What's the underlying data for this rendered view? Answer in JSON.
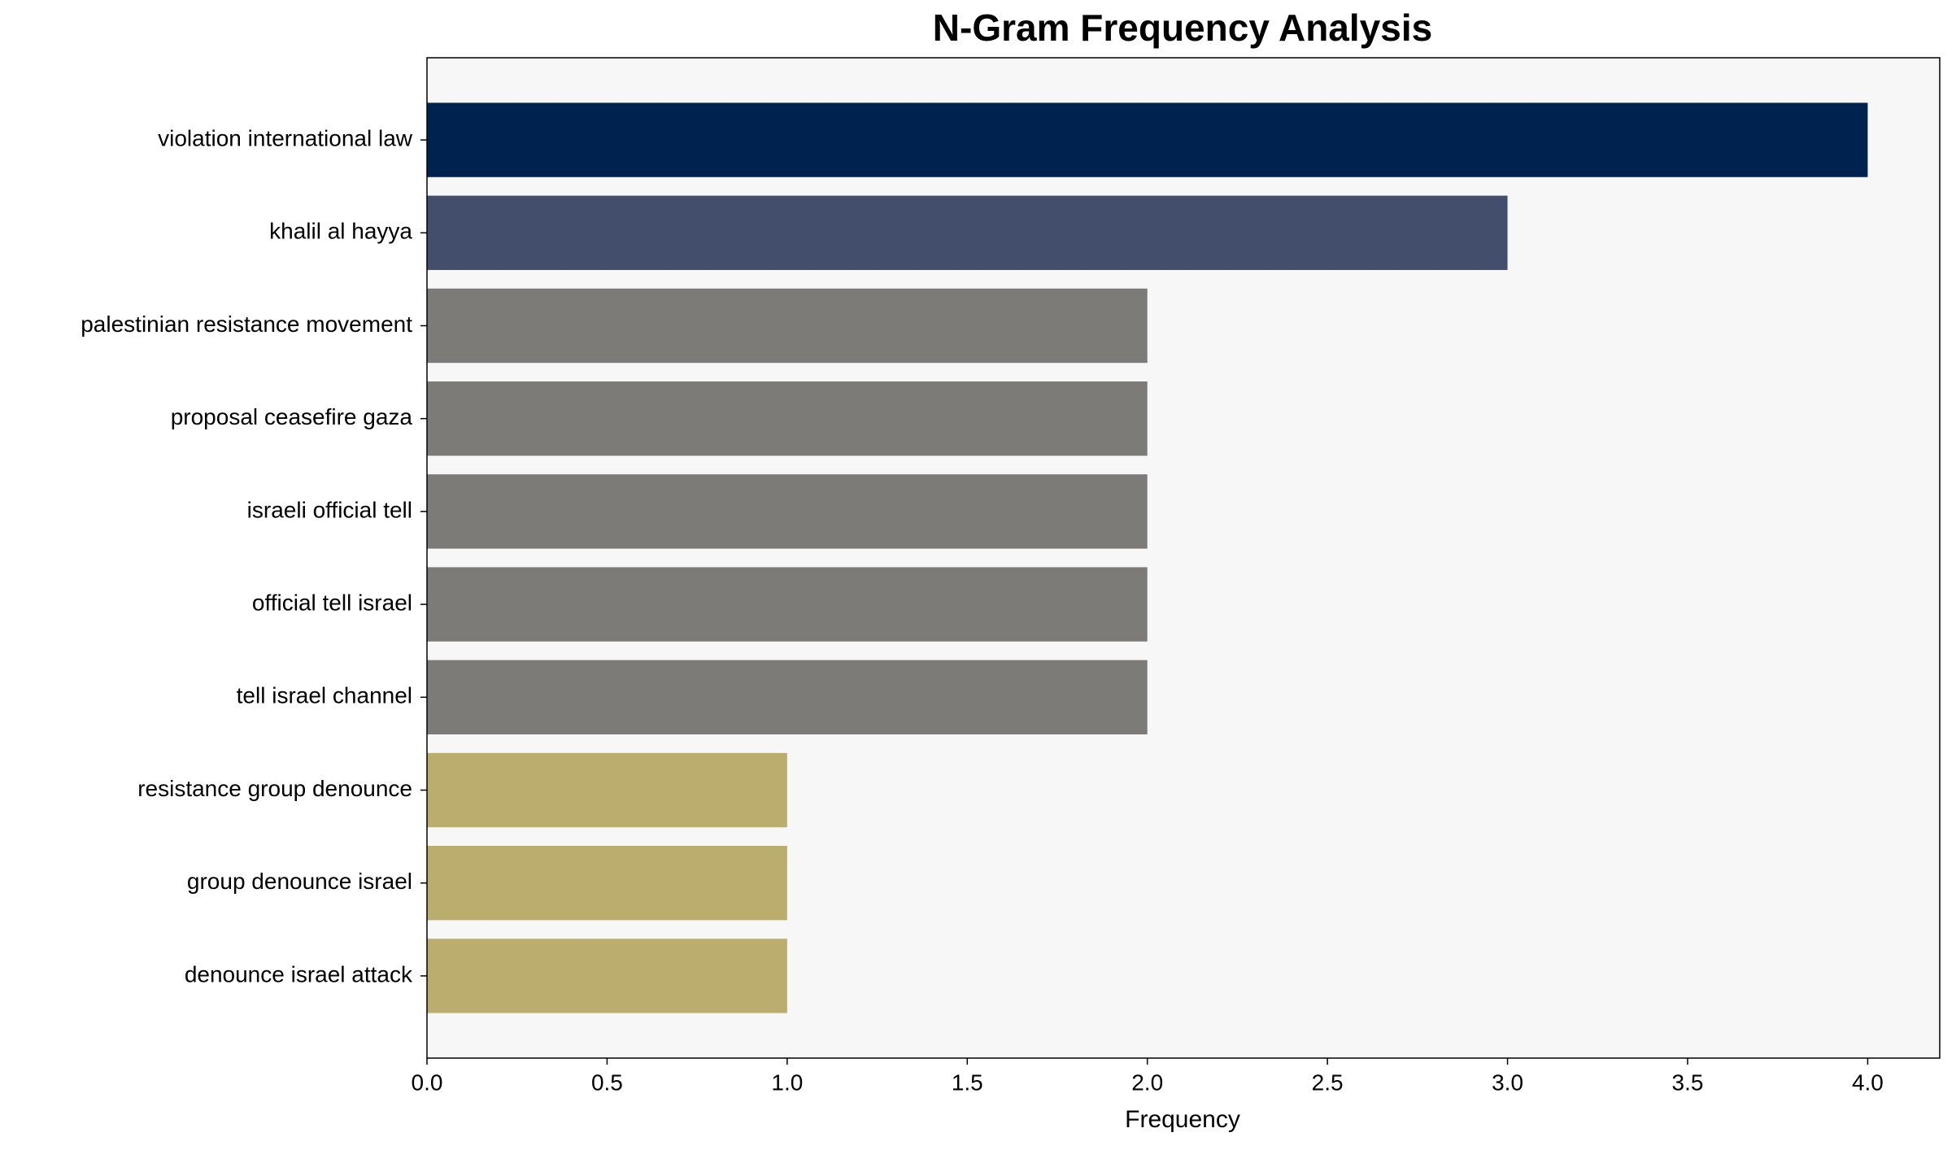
{
  "chart_data": {
    "type": "barh",
    "title": "N-Gram Frequency Analysis",
    "x_label": "Frequency",
    "categories": [
      "violation international law",
      "khalil al hayya",
      "palestinian resistance movement",
      "proposal ceasefire gaza",
      "israeli official tell",
      "official tell israel",
      "tell israel channel",
      "resistance group denounce",
      "group denounce israel",
      "denounce israel attack"
    ],
    "values": [
      4,
      3,
      2,
      2,
      2,
      2,
      2,
      1,
      1,
      1
    ],
    "colors": [
      "#00224e",
      "#434e6c",
      "#7c7b78",
      "#7c7b78",
      "#7c7b78",
      "#7c7b78",
      "#7c7b78",
      "#bbad6e",
      "#bbad6e",
      "#bbad6e"
    ],
    "xlim": [
      0,
      4.2
    ],
    "xticks": [
      {
        "value": 0,
        "label": "0.0"
      },
      0.5,
      {
        "value": 1,
        "label": "1.0"
      },
      1.5,
      {
        "value": 2,
        "label": "2.0"
      },
      2.5,
      {
        "value": 3,
        "label": "3.0"
      },
      3.5,
      {
        "value": 4,
        "label": "4.0"
      }
    ],
    "background": "#f7f7f7"
  }
}
